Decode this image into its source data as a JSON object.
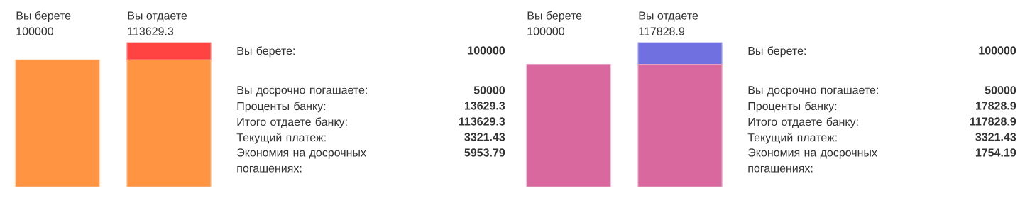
{
  "chart_data": [
    {
      "type": "bar",
      "stacked": true,
      "categories": [
        "Вы берете",
        "Вы отдаете"
      ],
      "series": [
        {
          "color": "#ff9442",
          "values": [
            100000,
            100000
          ],
          "value_labels": [
            "100000",
            null
          ]
        },
        {
          "color": "#ff4242",
          "values": [
            null,
            13629.3
          ]
        }
      ],
      "totals": [
        null,
        "113629.3"
      ]
    },
    {
      "type": "other",
      "annotations": [
        "Вы берете:",
        "100000",
        "Вы досрочно погашаете:",
        "50000",
        "Проценты банку:",
        "13629.3",
        "Итого отдаете банку:",
        "113629.3",
        "Текущий платеж:",
        "3321.43",
        "Экономия на досрочных погашениях:",
        "5953.79"
      ]
    },
    {
      "type": "bar",
      "stacked": true,
      "categories": [
        "Вы берете",
        "Вы отдаете"
      ],
      "series": [
        {
          "color": "#d9689f",
          "values": [
            100000,
            100000
          ],
          "value_labels": [
            "100000",
            null
          ]
        },
        {
          "color": "#7070e0",
          "values": [
            null,
            17828.9
          ]
        }
      ],
      "totals": [
        null,
        "117828.9"
      ]
    },
    {
      "type": "other",
      "annotations": [
        "Вы берете:",
        "100000",
        "Вы досрочно погашаете:",
        "50000",
        "Проценты банку:",
        "17828.9",
        "Итого отдаете банку:",
        "117828.9",
        "Текущий платеж:",
        "3321.43",
        "Экономия на досрочных погашениях:",
        "1754.19"
      ]
    }
  ]
}
